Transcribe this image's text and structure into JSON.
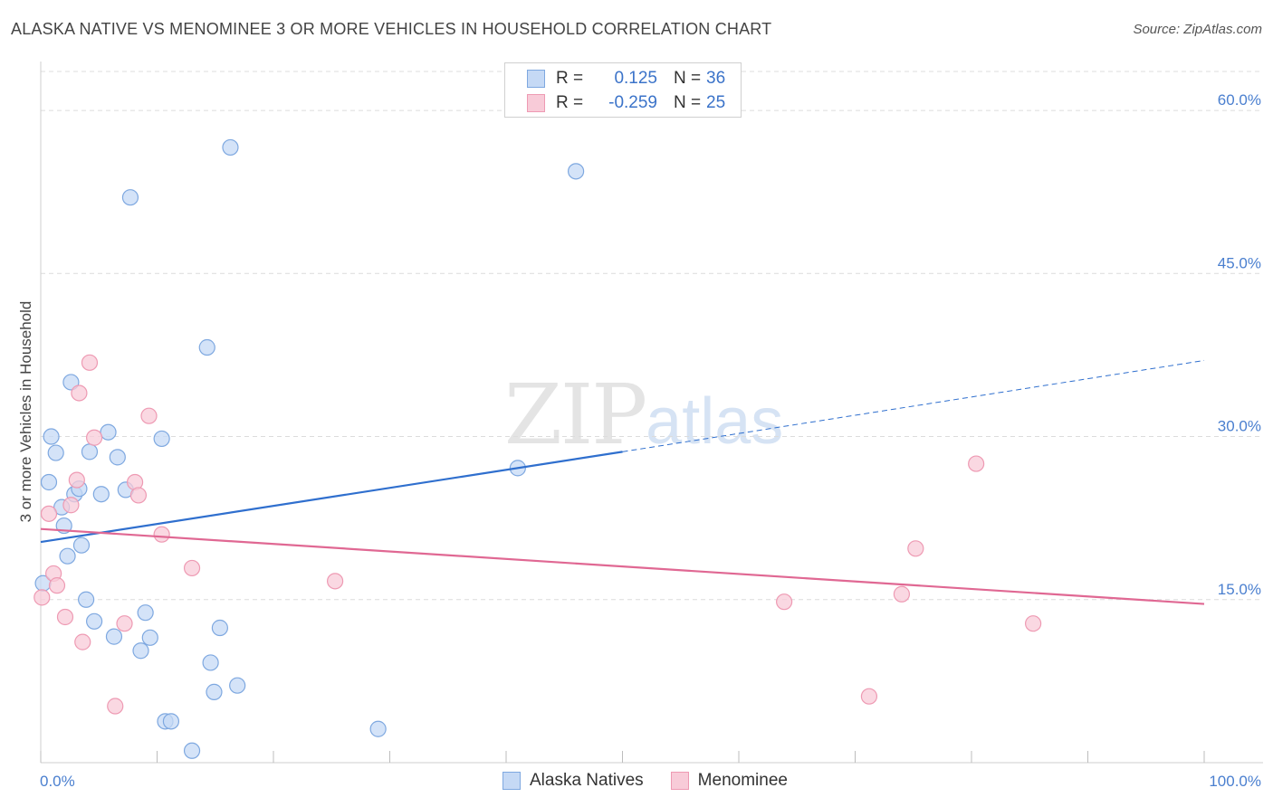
{
  "title": "ALASKA NATIVE VS MENOMINEE 3 OR MORE VEHICLES IN HOUSEHOLD CORRELATION CHART",
  "source": "Source: ZipAtlas.com",
  "watermark": {
    "zip": "ZIP",
    "atlas": "atlas"
  },
  "legend": {
    "rows": [
      {
        "r_label": "R =",
        "r_value": "0.125",
        "n_label": "N =",
        "n_value": "36"
      },
      {
        "r_label": "R =",
        "r_value": "-0.259",
        "n_label": "N =",
        "n_value": "25"
      }
    ]
  },
  "colors": {
    "blue_fill": "#c5d9f5",
    "blue_stroke": "#7ea8e0",
    "blue_line": "#2f6fce",
    "pink_fill": "#f8cbd8",
    "pink_stroke": "#ee9ab3",
    "pink_line": "#e06893",
    "grid": "#dcdcdc",
    "tick_text": "#4a7fcf"
  },
  "chart_data": {
    "type": "scatter",
    "ylabel": "3 or more Vehicles in Household",
    "xlim": [
      0,
      100
    ],
    "ylim": [
      0,
      64
    ],
    "x_tick_labels": [
      "0.0%",
      "100.0%"
    ],
    "y_ticks": [
      15,
      30,
      45,
      60
    ],
    "y_tick_labels": [
      "15.0%",
      "30.0%",
      "45.0%",
      "60.0%"
    ],
    "grid": "horizontal dashed",
    "series": [
      {
        "name": "Alaska Natives",
        "color": "blue",
        "points": [
          [
            0.2,
            16.5
          ],
          [
            0.7,
            25.8
          ],
          [
            0.9,
            30.0
          ],
          [
            1.3,
            28.5
          ],
          [
            1.8,
            23.5
          ],
          [
            2.0,
            21.8
          ],
          [
            2.3,
            19.0
          ],
          [
            2.6,
            35.0
          ],
          [
            2.9,
            24.7
          ],
          [
            3.3,
            25.2
          ],
          [
            3.5,
            20.0
          ],
          [
            3.9,
            15.0
          ],
          [
            4.2,
            28.6
          ],
          [
            4.6,
            13.0
          ],
          [
            5.2,
            24.7
          ],
          [
            5.8,
            30.4
          ],
          [
            6.3,
            11.6
          ],
          [
            6.6,
            28.1
          ],
          [
            7.3,
            25.1
          ],
          [
            7.7,
            52.0
          ],
          [
            8.6,
            10.3
          ],
          [
            9.0,
            13.8
          ],
          [
            9.4,
            11.5
          ],
          [
            10.4,
            29.8
          ],
          [
            10.7,
            3.8
          ],
          [
            11.2,
            3.8
          ],
          [
            13.0,
            1.1
          ],
          [
            14.3,
            38.2
          ],
          [
            14.6,
            9.2
          ],
          [
            14.9,
            6.5
          ],
          [
            15.4,
            12.4
          ],
          [
            16.3,
            56.6
          ],
          [
            16.9,
            7.1
          ],
          [
            29.0,
            3.1
          ],
          [
            41.0,
            27.1
          ],
          [
            46.0,
            54.4
          ]
        ],
        "trend": {
          "x": [
            0,
            50
          ],
          "y": [
            20.3,
            28.6
          ]
        },
        "trend_extension": {
          "x": [
            50,
            100
          ],
          "y": [
            28.6,
            37.0
          ]
        }
      },
      {
        "name": "Menominee",
        "color": "pink",
        "points": [
          [
            0.1,
            15.2
          ],
          [
            0.7,
            22.9
          ],
          [
            1.1,
            17.4
          ],
          [
            1.4,
            16.3
          ],
          [
            2.1,
            13.4
          ],
          [
            2.6,
            23.7
          ],
          [
            3.1,
            26.0
          ],
          [
            3.3,
            34.0
          ],
          [
            3.6,
            11.1
          ],
          [
            4.2,
            36.8
          ],
          [
            4.6,
            29.9
          ],
          [
            6.4,
            5.2
          ],
          [
            7.2,
            12.8
          ],
          [
            8.1,
            25.8
          ],
          [
            8.4,
            24.6
          ],
          [
            9.3,
            31.9
          ],
          [
            10.4,
            21.0
          ],
          [
            13.0,
            17.9
          ],
          [
            25.3,
            16.7
          ],
          [
            63.9,
            14.8
          ],
          [
            71.2,
            6.1
          ],
          [
            74.0,
            15.5
          ],
          [
            75.2,
            19.7
          ],
          [
            80.4,
            27.5
          ],
          [
            85.3,
            12.8
          ]
        ],
        "trend": {
          "x": [
            0,
            100
          ],
          "y": [
            21.5,
            14.6
          ]
        }
      }
    ]
  }
}
